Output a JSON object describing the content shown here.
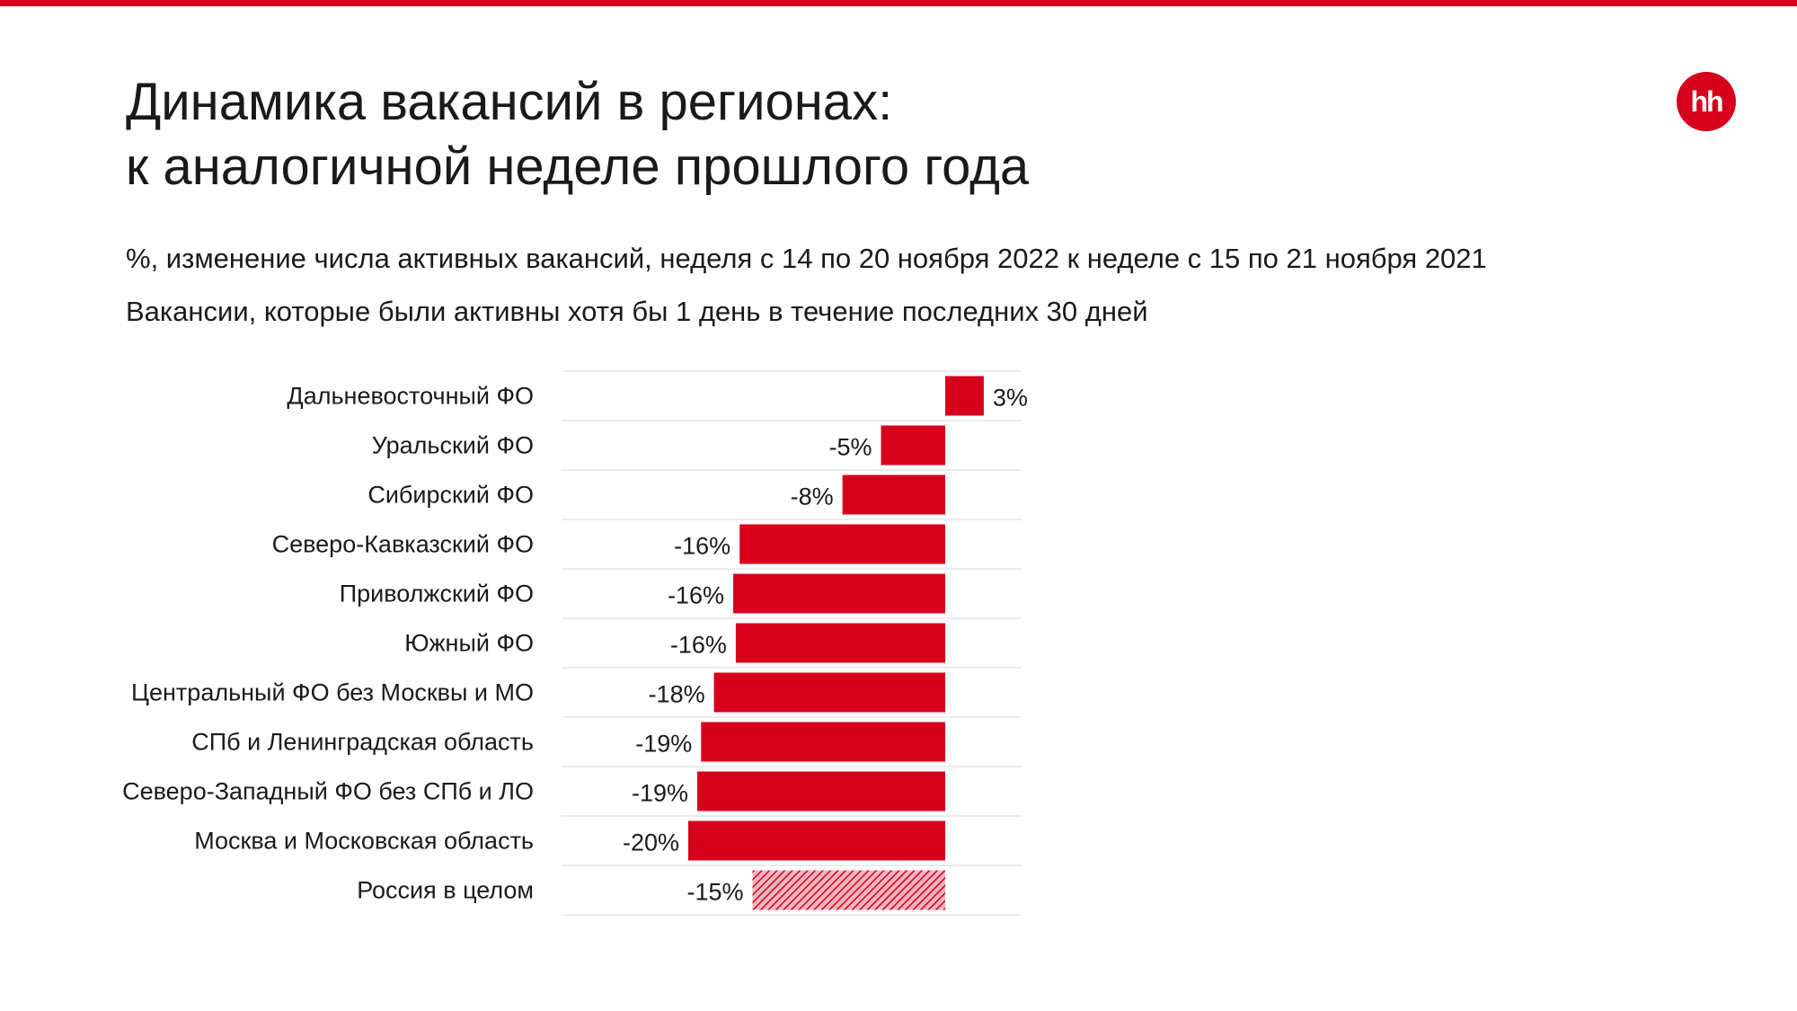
{
  "title": {
    "line1": "Динамика вакансий в регионах:",
    "line2": "к аналогичной неделе прошлого года"
  },
  "subtitle": "%, изменение числа активных вакансий, неделя с 14 по 20 ноября 2022 к неделе с 15 по 21 ноября 2021",
  "subtitle2": "Вакансии, которые были активны хотя бы 1 день в течение последних 30 дней",
  "logo": {
    "text": "hh",
    "color": "#d6001c"
  },
  "chart_data": {
    "type": "bar",
    "orientation": "horizontal",
    "categories": [
      "Дальневосточный ФО",
      "Уральский ФО",
      "Сибирский ФО",
      "Северо-Кавказский ФО",
      "Приволжский ФО",
      "Южный ФО",
      "Центральный ФО без Москвы и МО",
      "СПб и Ленинградская область",
      "Северо-Западный ФО без СПб и ЛО",
      "Москва и Московская область",
      "Россия в целом"
    ],
    "values": [
      3,
      -5,
      -8,
      -16,
      -16.5,
      -16.3,
      -18,
      -19,
      -19.3,
      -20,
      -15
    ],
    "value_labels": [
      "3%",
      "-5%",
      "-8%",
      "-16%",
      "-16%",
      "-16%",
      "-18%",
      "-19%",
      "-19%",
      "-20%",
      "-15%"
    ],
    "patterned": [
      false,
      false,
      false,
      false,
      false,
      false,
      false,
      false,
      false,
      false,
      true
    ],
    "bar_color": "#d6001c",
    "grid_color": "#e6e6e6",
    "xlim": [
      -22.5,
      4.5
    ],
    "grid": true,
    "legend": false
  }
}
